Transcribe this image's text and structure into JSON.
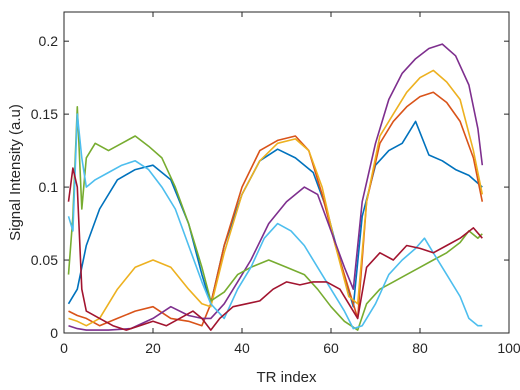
{
  "chart_data": {
    "type": "line",
    "title": "",
    "xlabel": "TR index",
    "ylabel": "Signal Intensity (a.u)",
    "xlim": [
      0,
      100
    ],
    "ylim": [
      0,
      0.22
    ],
    "xticks": [
      0,
      20,
      40,
      60,
      80,
      100
    ],
    "xtick_labels": [
      "0",
      "20",
      "40",
      "60",
      "80",
      "100"
    ],
    "yticks": [
      0,
      0.05,
      0.1,
      0.15,
      0.2
    ],
    "ytick_labels": [
      "0",
      "0.05",
      "0.1",
      "0.15",
      "0.2"
    ],
    "grid": false,
    "legend": "none",
    "series": [
      {
        "color": "#0072BD",
        "points": [
          [
            1,
            0.02
          ],
          [
            3,
            0.03
          ],
          [
            5,
            0.06
          ],
          [
            8,
            0.085
          ],
          [
            12,
            0.105
          ],
          [
            16,
            0.112
          ],
          [
            20,
            0.115
          ],
          [
            24,
            0.105
          ],
          [
            28,
            0.075
          ],
          [
            31,
            0.04
          ],
          [
            33,
            0.02
          ],
          [
            36,
            0.06
          ],
          [
            40,
            0.095
          ],
          [
            44,
            0.118
          ],
          [
            48,
            0.126
          ],
          [
            52,
            0.12
          ],
          [
            56,
            0.11
          ],
          [
            59,
            0.085
          ],
          [
            62,
            0.05
          ],
          [
            65,
            0.018
          ],
          [
            67,
            0.08
          ],
          [
            70,
            0.115
          ],
          [
            73,
            0.125
          ],
          [
            76,
            0.13
          ],
          [
            79,
            0.145
          ],
          [
            82,
            0.122
          ],
          [
            85,
            0.118
          ],
          [
            88,
            0.112
          ],
          [
            91,
            0.108
          ],
          [
            94,
            0.1
          ]
        ]
      },
      {
        "color": "#D95319",
        "points": [
          [
            1,
            0.015
          ],
          [
            3,
            0.012
          ],
          [
            5,
            0.01
          ],
          [
            8,
            0.005
          ],
          [
            12,
            0.01
          ],
          [
            16,
            0.015
          ],
          [
            20,
            0.018
          ],
          [
            24,
            0.01
          ],
          [
            28,
            0.008
          ],
          [
            31,
            0.005
          ],
          [
            33,
            0.02
          ],
          [
            36,
            0.06
          ],
          [
            40,
            0.1
          ],
          [
            44,
            0.125
          ],
          [
            48,
            0.132
          ],
          [
            52,
            0.135
          ],
          [
            55,
            0.125
          ],
          [
            58,
            0.095
          ],
          [
            61,
            0.06
          ],
          [
            64,
            0.03
          ],
          [
            66,
            0.01
          ],
          [
            68,
            0.09
          ],
          [
            71,
            0.13
          ],
          [
            74,
            0.145
          ],
          [
            77,
            0.155
          ],
          [
            80,
            0.162
          ],
          [
            83,
            0.165
          ],
          [
            86,
            0.158
          ],
          [
            89,
            0.145
          ],
          [
            92,
            0.12
          ],
          [
            94,
            0.09
          ]
        ]
      },
      {
        "color": "#EDB120",
        "points": [
          [
            1,
            0.01
          ],
          [
            3,
            0.008
          ],
          [
            5,
            0.005
          ],
          [
            8,
            0.01
          ],
          [
            12,
            0.03
          ],
          [
            16,
            0.045
          ],
          [
            20,
            0.05
          ],
          [
            24,
            0.045
          ],
          [
            28,
            0.03
          ],
          [
            31,
            0.02
          ],
          [
            33,
            0.018
          ],
          [
            36,
            0.055
          ],
          [
            40,
            0.095
          ],
          [
            44,
            0.118
          ],
          [
            48,
            0.13
          ],
          [
            52,
            0.133
          ],
          [
            55,
            0.125
          ],
          [
            58,
            0.1
          ],
          [
            61,
            0.06
          ],
          [
            64,
            0.025
          ],
          [
            66,
            0.02
          ],
          [
            68,
            0.09
          ],
          [
            71,
            0.135
          ],
          [
            74,
            0.15
          ],
          [
            77,
            0.165
          ],
          [
            80,
            0.175
          ],
          [
            83,
            0.18
          ],
          [
            86,
            0.172
          ],
          [
            89,
            0.16
          ],
          [
            92,
            0.125
          ],
          [
            94,
            0.095
          ]
        ]
      },
      {
        "color": "#7E2F8E",
        "points": [
          [
            1,
            0.005
          ],
          [
            3,
            0.003
          ],
          [
            5,
            0.002
          ],
          [
            10,
            0.002
          ],
          [
            15,
            0.003
          ],
          [
            20,
            0.01
          ],
          [
            24,
            0.018
          ],
          [
            28,
            0.012
          ],
          [
            31,
            0.01
          ],
          [
            33,
            0.01
          ],
          [
            36,
            0.02
          ],
          [
            39,
            0.035
          ],
          [
            42,
            0.05
          ],
          [
            46,
            0.075
          ],
          [
            50,
            0.09
          ],
          [
            54,
            0.1
          ],
          [
            57,
            0.095
          ],
          [
            60,
            0.07
          ],
          [
            63,
            0.045
          ],
          [
            65,
            0.03
          ],
          [
            67,
            0.09
          ],
          [
            70,
            0.13
          ],
          [
            73,
            0.16
          ],
          [
            76,
            0.178
          ],
          [
            79,
            0.188
          ],
          [
            82,
            0.195
          ],
          [
            85,
            0.198
          ],
          [
            88,
            0.19
          ],
          [
            91,
            0.17
          ],
          [
            93,
            0.14
          ],
          [
            94,
            0.115
          ]
        ]
      },
      {
        "color": "#77AC30",
        "points": [
          [
            1,
            0.04
          ],
          [
            2,
            0.08
          ],
          [
            3,
            0.155
          ],
          [
            4,
            0.085
          ],
          [
            5,
            0.12
          ],
          [
            7,
            0.13
          ],
          [
            10,
            0.125
          ],
          [
            13,
            0.13
          ],
          [
            16,
            0.135
          ],
          [
            19,
            0.128
          ],
          [
            22,
            0.12
          ],
          [
            25,
            0.1
          ],
          [
            28,
            0.075
          ],
          [
            31,
            0.045
          ],
          [
            33,
            0.022
          ],
          [
            36,
            0.028
          ],
          [
            39,
            0.04
          ],
          [
            42,
            0.045
          ],
          [
            46,
            0.05
          ],
          [
            50,
            0.045
          ],
          [
            54,
            0.04
          ],
          [
            57,
            0.03
          ],
          [
            60,
            0.018
          ],
          [
            63,
            0.008
          ],
          [
            66,
            0.002
          ],
          [
            68,
            0.02
          ],
          [
            71,
            0.03
          ],
          [
            74,
            0.035
          ],
          [
            77,
            0.04
          ],
          [
            80,
            0.045
          ],
          [
            83,
            0.05
          ],
          [
            86,
            0.055
          ],
          [
            89,
            0.062
          ],
          [
            91,
            0.07
          ],
          [
            93,
            0.065
          ],
          [
            94,
            0.068
          ]
        ]
      },
      {
        "color": "#4DBEEE",
        "points": [
          [
            1,
            0.08
          ],
          [
            2,
            0.07
          ],
          [
            3,
            0.15
          ],
          [
            4,
            0.12
          ],
          [
            5,
            0.1
          ],
          [
            7,
            0.105
          ],
          [
            10,
            0.11
          ],
          [
            13,
            0.115
          ],
          [
            16,
            0.118
          ],
          [
            19,
            0.112
          ],
          [
            22,
            0.1
          ],
          [
            25,
            0.085
          ],
          [
            28,
            0.06
          ],
          [
            31,
            0.035
          ],
          [
            33,
            0.02
          ],
          [
            36,
            0.01
          ],
          [
            39,
            0.03
          ],
          [
            42,
            0.045
          ],
          [
            45,
            0.065
          ],
          [
            48,
            0.075
          ],
          [
            51,
            0.07
          ],
          [
            54,
            0.06
          ],
          [
            57,
            0.045
          ],
          [
            60,
            0.03
          ],
          [
            63,
            0.015
          ],
          [
            65,
            0.003
          ],
          [
            67,
            0.005
          ],
          [
            70,
            0.02
          ],
          [
            73,
            0.04
          ],
          [
            76,
            0.05
          ],
          [
            79,
            0.058
          ],
          [
            81,
            0.065
          ],
          [
            83,
            0.055
          ],
          [
            86,
            0.04
          ],
          [
            89,
            0.025
          ],
          [
            91,
            0.01
          ],
          [
            93,
            0.005
          ],
          [
            94,
            0.005
          ]
        ]
      },
      {
        "color": "#A2142F",
        "points": [
          [
            1,
            0.09
          ],
          [
            2,
            0.113
          ],
          [
            3,
            0.1
          ],
          [
            4,
            0.03
          ],
          [
            5,
            0.015
          ],
          [
            8,
            0.01
          ],
          [
            11,
            0.005
          ],
          [
            14,
            0.002
          ],
          [
            17,
            0.005
          ],
          [
            20,
            0.008
          ],
          [
            23,
            0.005
          ],
          [
            26,
            0.01
          ],
          [
            29,
            0.015
          ],
          [
            31,
            0.01
          ],
          [
            33,
            0.002
          ],
          [
            35,
            0.01
          ],
          [
            38,
            0.018
          ],
          [
            41,
            0.02
          ],
          [
            44,
            0.022
          ],
          [
            47,
            0.03
          ],
          [
            50,
            0.035
          ],
          [
            53,
            0.033
          ],
          [
            56,
            0.035
          ],
          [
            59,
            0.035
          ],
          [
            62,
            0.03
          ],
          [
            64,
            0.02
          ],
          [
            66,
            0.01
          ],
          [
            68,
            0.045
          ],
          [
            71,
            0.055
          ],
          [
            74,
            0.05
          ],
          [
            77,
            0.06
          ],
          [
            80,
            0.058
          ],
          [
            83,
            0.055
          ],
          [
            86,
            0.06
          ],
          [
            89,
            0.065
          ],
          [
            92,
            0.072
          ],
          [
            94,
            0.065
          ]
        ]
      }
    ]
  }
}
